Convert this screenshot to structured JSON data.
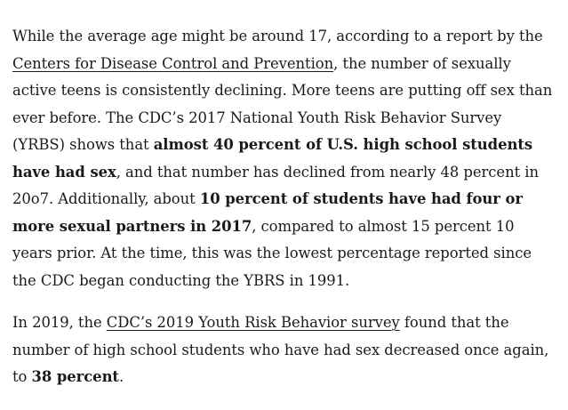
{
  "paragraphs": [
    {
      "parts": [
        "While the average age might be around 17, according to a report by the ",
        "Centers for Disease Control and Prevention",
        ", the number of sexually active teens is consistently declining. More teens are putting off sex than ever before. The CDC’s 2017 National Youth Risk Behavior Survey (YRBS) shows that ",
        "almost 40 percent of U.S. high school students have had sex",
        ", and that number has declined from nearly 48 percent in 20o7. Additionally, about ",
        "10 percent of students have had four or more sexual partners in 2017",
        ", compared to almost 15 percent 10 years prior. At the time, this was the lowest percentage reported since the CDC began conducting the YBRS in 1991."
      ]
    },
    {
      "parts": [
        "In 2019, the ",
        "CDC’s 2019 Youth Risk Behavior survey",
        " found that the number of high school students who have had sex decreased once again, to ",
        "38 percent",
        "."
      ]
    }
  ]
}
